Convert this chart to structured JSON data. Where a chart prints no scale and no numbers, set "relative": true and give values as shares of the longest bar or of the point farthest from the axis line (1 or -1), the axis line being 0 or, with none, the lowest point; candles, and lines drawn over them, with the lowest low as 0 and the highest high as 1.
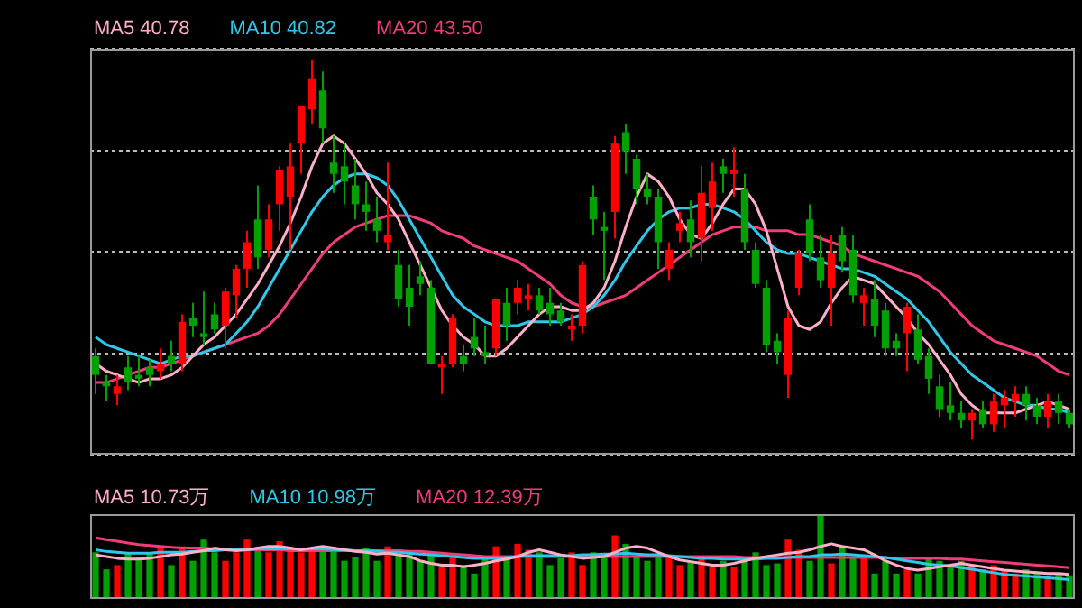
{
  "chart_data": [
    {
      "type": "candlestick",
      "relative": true,
      "grid": "y",
      "legend": "top left",
      "tick_labels": false,
      "categories": [
        null,
        null,
        null,
        null,
        null,
        null,
        null,
        null,
        null,
        null,
        null,
        null,
        null,
        null,
        null,
        null,
        null,
        null,
        null,
        null,
        null,
        null,
        null,
        null,
        null,
        null,
        null,
        null,
        null,
        null,
        null,
        null,
        null,
        null,
        null,
        null,
        null,
        null,
        null,
        null,
        null,
        null,
        null,
        null,
        null,
        null,
        null,
        null,
        null,
        null,
        null,
        null,
        null,
        null,
        null,
        null,
        null,
        null,
        null,
        null,
        null,
        null,
        null,
        null,
        null,
        null,
        null,
        null,
        null,
        null,
        null,
        null,
        null,
        null,
        null,
        null,
        null,
        null,
        null,
        null,
        null,
        null,
        null,
        null,
        null,
        null,
        null,
        null,
        null,
        null,
        null
      ],
      "ohlc": [
        [
          0.22,
          0.24,
          0.12,
          0.17
        ],
        [
          0.15,
          0.17,
          0.1,
          0.14
        ],
        [
          0.12,
          0.17,
          0.09,
          0.14
        ],
        [
          0.19,
          0.22,
          0.13,
          0.15
        ],
        [
          0.17,
          0.22,
          0.14,
          0.16
        ],
        [
          0.19,
          0.21,
          0.14,
          0.17
        ],
        [
          0.18,
          0.24,
          0.16,
          0.2
        ],
        [
          0.22,
          0.26,
          0.18,
          0.2
        ],
        [
          0.2,
          0.33,
          0.18,
          0.31
        ],
        [
          0.32,
          0.36,
          0.27,
          0.3
        ],
        [
          0.28,
          0.39,
          0.25,
          0.27
        ],
        [
          0.33,
          0.36,
          0.28,
          0.29
        ],
        [
          0.3,
          0.4,
          0.24,
          0.39
        ],
        [
          0.38,
          0.46,
          0.32,
          0.45
        ],
        [
          0.45,
          0.55,
          0.4,
          0.52
        ],
        [
          0.58,
          0.67,
          0.45,
          0.48
        ],
        [
          0.5,
          0.62,
          0.48,
          0.58
        ],
        [
          0.62,
          0.72,
          0.55,
          0.71
        ],
        [
          0.64,
          0.78,
          0.5,
          0.72
        ],
        [
          0.78,
          0.88,
          0.7,
          0.88
        ],
        [
          0.87,
          1.0,
          0.83,
          0.95
        ],
        [
          0.92,
          0.97,
          0.78,
          0.82
        ],
        [
          0.73,
          0.8,
          0.65,
          0.7
        ],
        [
          0.72,
          0.78,
          0.62,
          0.68
        ],
        [
          0.67,
          0.74,
          0.58,
          0.62
        ],
        [
          0.62,
          0.68,
          0.55,
          0.6
        ],
        [
          0.58,
          0.64,
          0.52,
          0.55
        ],
        [
          0.52,
          0.73,
          0.5,
          0.54
        ],
        [
          0.46,
          0.5,
          0.35,
          0.37
        ],
        [
          0.4,
          0.46,
          0.3,
          0.35
        ],
        [
          0.43,
          0.47,
          0.38,
          0.41
        ],
        [
          0.4,
          0.42,
          0.2,
          0.2
        ],
        [
          0.19,
          0.22,
          0.12,
          0.2
        ],
        [
          0.2,
          0.33,
          0.19,
          0.32
        ],
        [
          0.22,
          0.25,
          0.18,
          0.2
        ],
        [
          0.27,
          0.32,
          0.22,
          0.24
        ],
        [
          0.23,
          0.3,
          0.2,
          0.22
        ],
        [
          0.24,
          0.37,
          0.22,
          0.37
        ],
        [
          0.36,
          0.4,
          0.26,
          0.3
        ],
        [
          0.36,
          0.42,
          0.33,
          0.4
        ],
        [
          0.37,
          0.41,
          0.34,
          0.38
        ],
        [
          0.38,
          0.4,
          0.33,
          0.34
        ],
        [
          0.36,
          0.4,
          0.3,
          0.33
        ],
        [
          0.34,
          0.36,
          0.3,
          0.31
        ],
        [
          0.29,
          0.33,
          0.26,
          0.3
        ],
        [
          0.3,
          0.47,
          0.28,
          0.46
        ],
        [
          0.64,
          0.67,
          0.54,
          0.58
        ],
        [
          0.56,
          0.6,
          0.42,
          0.55
        ],
        [
          0.6,
          0.8,
          0.53,
          0.78
        ],
        [
          0.81,
          0.83,
          0.7,
          0.76
        ],
        [
          0.74,
          0.75,
          0.62,
          0.66
        ],
        [
          0.66,
          0.7,
          0.62,
          0.64
        ],
        [
          0.64,
          0.66,
          0.45,
          0.52
        ],
        [
          0.45,
          0.52,
          0.42,
          0.5
        ],
        [
          0.55,
          0.6,
          0.52,
          0.57
        ],
        [
          0.58,
          0.63,
          0.48,
          0.52
        ],
        [
          0.53,
          0.72,
          0.47,
          0.65
        ],
        [
          0.61,
          0.73,
          0.55,
          0.68
        ],
        [
          0.72,
          0.74,
          0.65,
          0.7
        ],
        [
          0.7,
          0.77,
          0.64,
          0.71
        ],
        [
          0.66,
          0.7,
          0.5,
          0.52
        ],
        [
          0.5,
          0.52,
          0.4,
          0.41
        ],
        [
          0.4,
          0.42,
          0.23,
          0.25
        ],
        [
          0.26,
          0.28,
          0.2,
          0.23
        ],
        [
          0.17,
          0.34,
          0.11,
          0.32
        ],
        [
          0.4,
          0.5,
          0.38,
          0.49
        ],
        [
          0.58,
          0.62,
          0.47,
          0.49
        ],
        [
          0.48,
          0.54,
          0.4,
          0.42
        ],
        [
          0.4,
          0.54,
          0.3,
          0.49
        ],
        [
          0.54,
          0.56,
          0.44,
          0.47
        ],
        [
          0.5,
          0.54,
          0.36,
          0.38
        ],
        [
          0.36,
          0.4,
          0.3,
          0.38
        ],
        [
          0.37,
          0.42,
          0.27,
          0.3
        ],
        [
          0.34,
          0.36,
          0.22,
          0.24
        ],
        [
          0.26,
          0.28,
          0.22,
          0.24
        ],
        [
          0.28,
          0.36,
          0.18,
          0.35
        ],
        [
          0.29,
          0.33,
          0.2,
          0.21
        ],
        [
          0.22,
          0.24,
          0.12,
          0.16
        ],
        [
          0.14,
          0.17,
          0.06,
          0.08
        ],
        [
          0.09,
          0.15,
          0.05,
          0.07
        ],
        [
          0.07,
          0.1,
          0.03,
          0.05
        ],
        [
          0.05,
          0.08,
          0.0,
          0.07
        ],
        [
          0.08,
          0.1,
          0.03,
          0.04
        ],
        [
          0.04,
          0.12,
          0.02,
          0.1
        ],
        [
          0.09,
          0.13,
          0.03,
          0.11
        ],
        [
          0.1,
          0.14,
          0.06,
          0.12
        ],
        [
          0.12,
          0.14,
          0.05,
          0.09
        ],
        [
          0.09,
          0.11,
          0.04,
          0.06
        ],
        [
          0.06,
          0.12,
          0.03,
          0.1
        ],
        [
          0.1,
          0.12,
          0.04,
          0.07
        ],
        [
          0.07,
          0.08,
          0.03,
          0.04
        ]
      ],
      "colors": [
        "#00a000",
        "#00a000",
        "#ff0000",
        "#00a000",
        "#00a000",
        "#00a000",
        "#ff0000",
        "#00a000",
        "#ff0000",
        "#00a000",
        "#00a000",
        "#00a000",
        "#ff0000",
        "#ff0000",
        "#ff0000",
        "#00a000",
        "#ff0000",
        "#ff0000",
        "#ff0000",
        "#ff0000",
        "#ff0000",
        "#00a000",
        "#00a000",
        "#00a000",
        "#00a000",
        "#00a000",
        "#00a000",
        "#ff0000",
        "#00a000",
        "#00a000",
        "#00a000",
        "#00a000",
        "#ff0000",
        "#ff0000",
        "#00a000",
        "#00a000",
        "#00a000",
        "#ff0000",
        "#00a000",
        "#ff0000",
        "#ff0000",
        "#00a000",
        "#00a000",
        "#00a000",
        "#ff0000",
        "#ff0000",
        "#00a000",
        "#00a000",
        "#ff0000",
        "#00a000",
        "#00a000",
        "#00a000",
        "#00a000",
        "#ff0000",
        "#ff0000",
        "#00a000",
        "#ff0000",
        "#ff0000",
        "#00a000",
        "#ff0000",
        "#00a000",
        "#00a000",
        "#00a000",
        "#00a000",
        "#ff0000",
        "#ff0000",
        "#00a000",
        "#00a000",
        "#ff0000",
        "#00a000",
        "#00a000",
        "#ff0000",
        "#00a000",
        "#00a000",
        "#00a000",
        "#ff0000",
        "#00a000",
        "#00a000",
        "#00a000",
        "#00a000",
        "#00a000",
        "#ff0000",
        "#00a000",
        "#ff0000",
        "#ff0000",
        "#ff0000",
        "#00a000",
        "#00a000",
        "#ff0000",
        "#00a000",
        "#00a000"
      ],
      "series": [
        {
          "type": "line",
          "name": "MA5 40.78",
          "color": "#ffb0c8",
          "values": [
            0.2,
            0.18,
            0.17,
            0.16,
            0.15,
            0.16,
            0.16,
            0.17,
            0.19,
            0.22,
            0.25,
            0.27,
            0.3,
            0.33,
            0.37,
            0.41,
            0.46,
            0.51,
            0.57,
            0.64,
            0.72,
            0.78,
            0.8,
            0.78,
            0.74,
            0.7,
            0.65,
            0.62,
            0.58,
            0.52,
            0.46,
            0.4,
            0.34,
            0.3,
            0.27,
            0.25,
            0.22,
            0.22,
            0.24,
            0.27,
            0.3,
            0.33,
            0.35,
            0.35,
            0.34,
            0.34,
            0.36,
            0.4,
            0.47,
            0.56,
            0.64,
            0.7,
            0.68,
            0.64,
            0.58,
            0.54,
            0.53,
            0.57,
            0.62,
            0.66,
            0.66,
            0.62,
            0.55,
            0.45,
            0.35,
            0.3,
            0.29,
            0.31,
            0.36,
            0.4,
            0.43,
            0.42,
            0.41,
            0.38,
            0.35,
            0.32,
            0.28,
            0.25,
            0.21,
            0.17,
            0.12,
            0.09,
            0.07,
            0.07,
            0.07,
            0.07,
            0.08,
            0.09,
            0.1,
            0.09,
            0.08
          ]
        },
        {
          "type": "line",
          "name": "MA10 40.82",
          "color": "#30c8e8",
          "values": [
            0.27,
            0.25,
            0.24,
            0.23,
            0.22,
            0.21,
            0.2,
            0.21,
            0.22,
            0.22,
            0.23,
            0.24,
            0.25,
            0.28,
            0.31,
            0.35,
            0.4,
            0.45,
            0.5,
            0.55,
            0.6,
            0.64,
            0.67,
            0.69,
            0.7,
            0.7,
            0.69,
            0.67,
            0.63,
            0.58,
            0.53,
            0.48,
            0.43,
            0.38,
            0.35,
            0.33,
            0.31,
            0.3,
            0.3,
            0.3,
            0.31,
            0.31,
            0.31,
            0.31,
            0.32,
            0.33,
            0.35,
            0.38,
            0.42,
            0.47,
            0.51,
            0.55,
            0.58,
            0.6,
            0.61,
            0.61,
            0.62,
            0.62,
            0.61,
            0.6,
            0.58,
            0.55,
            0.52,
            0.5,
            0.49,
            0.49,
            0.48,
            0.47,
            0.46,
            0.45,
            0.45,
            0.44,
            0.43,
            0.41,
            0.39,
            0.37,
            0.34,
            0.31,
            0.27,
            0.23,
            0.2,
            0.17,
            0.15,
            0.13,
            0.11,
            0.1,
            0.09,
            0.09,
            0.08,
            0.08,
            0.07
          ]
        },
        {
          "type": "line",
          "name": "MA20 43.50",
          "color": "#f03c78",
          "values": [
            0.15,
            0.15,
            0.16,
            0.17,
            0.18,
            0.19,
            0.19,
            0.2,
            0.21,
            0.22,
            0.23,
            0.24,
            0.25,
            0.26,
            0.27,
            0.28,
            0.3,
            0.33,
            0.37,
            0.41,
            0.45,
            0.49,
            0.52,
            0.54,
            0.56,
            0.57,
            0.58,
            0.59,
            0.59,
            0.59,
            0.58,
            0.57,
            0.55,
            0.54,
            0.53,
            0.51,
            0.5,
            0.49,
            0.48,
            0.47,
            0.45,
            0.43,
            0.41,
            0.38,
            0.36,
            0.35,
            0.35,
            0.36,
            0.37,
            0.38,
            0.4,
            0.42,
            0.44,
            0.46,
            0.48,
            0.5,
            0.52,
            0.54,
            0.55,
            0.56,
            0.56,
            0.56,
            0.55,
            0.55,
            0.55,
            0.54,
            0.54,
            0.53,
            0.52,
            0.51,
            0.49,
            0.48,
            0.47,
            0.46,
            0.45,
            0.44,
            0.43,
            0.41,
            0.39,
            0.36,
            0.33,
            0.3,
            0.28,
            0.26,
            0.25,
            0.24,
            0.23,
            0.22,
            0.2,
            0.18,
            0.17
          ]
        }
      ]
    },
    {
      "type": "bar",
      "relative": true,
      "legend": "top left",
      "tick_labels": false,
      "categories": [
        null,
        null,
        null,
        null,
        null,
        null,
        null,
        null,
        null,
        null,
        null,
        null,
        null,
        null,
        null,
        null,
        null,
        null,
        null,
        null,
        null,
        null,
        null,
        null,
        null,
        null,
        null,
        null,
        null,
        null,
        null,
        null,
        null,
        null,
        null,
        null,
        null,
        null,
        null,
        null,
        null,
        null,
        null,
        null,
        null,
        null,
        null,
        null,
        null,
        null,
        null,
        null,
        null,
        null,
        null,
        null,
        null,
        null,
        null,
        null,
        null,
        null,
        null,
        null,
        null,
        null,
        null,
        null,
        null,
        null,
        null,
        null,
        null,
        null,
        null,
        null,
        null,
        null,
        null,
        null,
        null,
        null,
        null,
        null,
        null,
        null,
        null,
        null,
        null,
        null,
        null
      ],
      "series": [
        {
          "colors": [
            "#00a000",
            "#00a000",
            "#ff0000",
            "#00a000",
            "#00a000",
            "#00a000",
            "#ff0000",
            "#00a000",
            "#ff0000",
            "#00a000",
            "#00a000",
            "#00a000",
            "#ff0000",
            "#ff0000",
            "#ff0000",
            "#00a000",
            "#ff0000",
            "#ff0000",
            "#ff0000",
            "#ff0000",
            "#ff0000",
            "#00a000",
            "#00a000",
            "#00a000",
            "#00a000",
            "#00a000",
            "#00a000",
            "#ff0000",
            "#00a000",
            "#00a000",
            "#00a000",
            "#00a000",
            "#ff0000",
            "#ff0000",
            "#00a000",
            "#00a000",
            "#00a000",
            "#ff0000",
            "#00a000",
            "#ff0000",
            "#ff0000",
            "#00a000",
            "#00a000",
            "#00a000",
            "#ff0000",
            "#ff0000",
            "#00a000",
            "#00a000",
            "#ff0000",
            "#00a000",
            "#00a000",
            "#00a000",
            "#00a000",
            "#ff0000",
            "#ff0000",
            "#00a000",
            "#ff0000",
            "#ff0000",
            "#00a000",
            "#ff0000",
            "#00a000",
            "#00a000",
            "#00a000",
            "#00a000",
            "#ff0000",
            "#ff0000",
            "#00a000",
            "#00a000",
            "#ff0000",
            "#00a000",
            "#00a000",
            "#ff0000",
            "#00a000",
            "#00a000",
            "#00a000",
            "#ff0000",
            "#00a000",
            "#00a000",
            "#00a000",
            "#00a000",
            "#00a000",
            "#ff0000",
            "#00a000",
            "#ff0000",
            "#ff0000",
            "#ff0000",
            "#00a000",
            "#00a000",
            "#ff0000",
            "#00a000",
            "#00a000"
          ],
          "values": [
            0.55,
            0.35,
            0.4,
            0.55,
            0.5,
            0.55,
            0.6,
            0.4,
            0.62,
            0.45,
            0.7,
            0.55,
            0.45,
            0.55,
            0.7,
            0.6,
            0.55,
            0.68,
            0.58,
            0.55,
            0.6,
            0.58,
            0.58,
            0.45,
            0.5,
            0.6,
            0.45,
            0.62,
            0.52,
            0.55,
            0.45,
            0.55,
            0.38,
            0.5,
            0.4,
            0.3,
            0.48,
            0.62,
            0.5,
            0.65,
            0.58,
            0.55,
            0.4,
            0.48,
            0.55,
            0.4,
            0.55,
            0.5,
            0.75,
            0.65,
            0.5,
            0.45,
            0.5,
            0.5,
            0.4,
            0.45,
            0.5,
            0.38,
            0.45,
            0.38,
            0.45,
            0.55,
            0.4,
            0.42,
            0.7,
            0.58,
            0.45,
            1.0,
            0.42,
            0.62,
            0.48,
            0.5,
            0.3,
            0.45,
            0.3,
            0.35,
            0.3,
            0.48,
            0.45,
            0.4,
            0.45,
            0.4,
            0.35,
            0.4,
            0.35,
            0.3,
            0.35,
            0.3,
            0.25,
            0.3,
            0.28
          ]
        },
        {
          "type": "line",
          "name": "MA5 10.73万",
          "color": "#ffb0c8",
          "values": [
            0.52,
            0.5,
            0.48,
            0.47,
            0.47,
            0.48,
            0.5,
            0.52,
            0.53,
            0.55,
            0.57,
            0.6,
            0.58,
            0.57,
            0.58,
            0.6,
            0.62,
            0.62,
            0.6,
            0.58,
            0.6,
            0.62,
            0.6,
            0.58,
            0.56,
            0.55,
            0.53,
            0.54,
            0.52,
            0.5,
            0.45,
            0.42,
            0.4,
            0.4,
            0.38,
            0.4,
            0.42,
            0.45,
            0.47,
            0.5,
            0.55,
            0.58,
            0.55,
            0.52,
            0.5,
            0.48,
            0.49,
            0.5,
            0.55,
            0.6,
            0.62,
            0.6,
            0.55,
            0.5,
            0.46,
            0.44,
            0.42,
            0.4,
            0.4,
            0.42,
            0.45,
            0.48,
            0.5,
            0.52,
            0.54,
            0.55,
            0.58,
            0.62,
            0.65,
            0.62,
            0.6,
            0.58,
            0.52,
            0.45,
            0.4,
            0.36,
            0.34,
            0.36,
            0.38,
            0.4,
            0.42,
            0.4,
            0.38,
            0.36,
            0.34,
            0.33,
            0.32,
            0.31,
            0.3,
            0.3,
            0.29
          ]
        },
        {
          "type": "line",
          "name": "MA10 10.98万",
          "color": "#30c8e8",
          "values": [
            0.58,
            0.56,
            0.55,
            0.54,
            0.54,
            0.54,
            0.55,
            0.55,
            0.55,
            0.56,
            0.57,
            0.57,
            0.58,
            0.58,
            0.58,
            0.59,
            0.59,
            0.59,
            0.59,
            0.59,
            0.59,
            0.59,
            0.58,
            0.58,
            0.57,
            0.57,
            0.56,
            0.55,
            0.55,
            0.54,
            0.53,
            0.52,
            0.51,
            0.5,
            0.49,
            0.48,
            0.48,
            0.48,
            0.49,
            0.5,
            0.51,
            0.51,
            0.51,
            0.51,
            0.51,
            0.52,
            0.52,
            0.53,
            0.53,
            0.54,
            0.53,
            0.52,
            0.52,
            0.51,
            0.5,
            0.49,
            0.48,
            0.48,
            0.47,
            0.47,
            0.47,
            0.47,
            0.48,
            0.48,
            0.49,
            0.5,
            0.5,
            0.52,
            0.52,
            0.53,
            0.52,
            0.51,
            0.5,
            0.49,
            0.47,
            0.45,
            0.43,
            0.41,
            0.4,
            0.39,
            0.37,
            0.35,
            0.33,
            0.31,
            0.29,
            0.28,
            0.27,
            0.26,
            0.25,
            0.24,
            0.23
          ]
        },
        {
          "type": "line",
          "name": "MA20 12.39万",
          "color": "#f03c78",
          "values": [
            0.72,
            0.7,
            0.68,
            0.66,
            0.64,
            0.63,
            0.62,
            0.61,
            0.6,
            0.6,
            0.6,
            0.59,
            0.58,
            0.58,
            0.58,
            0.58,
            0.58,
            0.58,
            0.57,
            0.57,
            0.57,
            0.57,
            0.57,
            0.57,
            0.57,
            0.57,
            0.57,
            0.57,
            0.57,
            0.56,
            0.56,
            0.55,
            0.54,
            0.53,
            0.52,
            0.51,
            0.5,
            0.5,
            0.5,
            0.5,
            0.5,
            0.5,
            0.5,
            0.5,
            0.5,
            0.5,
            0.5,
            0.5,
            0.5,
            0.5,
            0.5,
            0.5,
            0.5,
            0.5,
            0.5,
            0.5,
            0.5,
            0.5,
            0.5,
            0.5,
            0.49,
            0.49,
            0.49,
            0.49,
            0.49,
            0.49,
            0.49,
            0.49,
            0.49,
            0.49,
            0.49,
            0.49,
            0.49,
            0.49,
            0.48,
            0.48,
            0.48,
            0.48,
            0.48,
            0.47,
            0.47,
            0.46,
            0.45,
            0.44,
            0.43,
            0.42,
            0.41,
            0.4,
            0.39,
            0.38,
            0.37
          ]
        }
      ]
    }
  ]
}
